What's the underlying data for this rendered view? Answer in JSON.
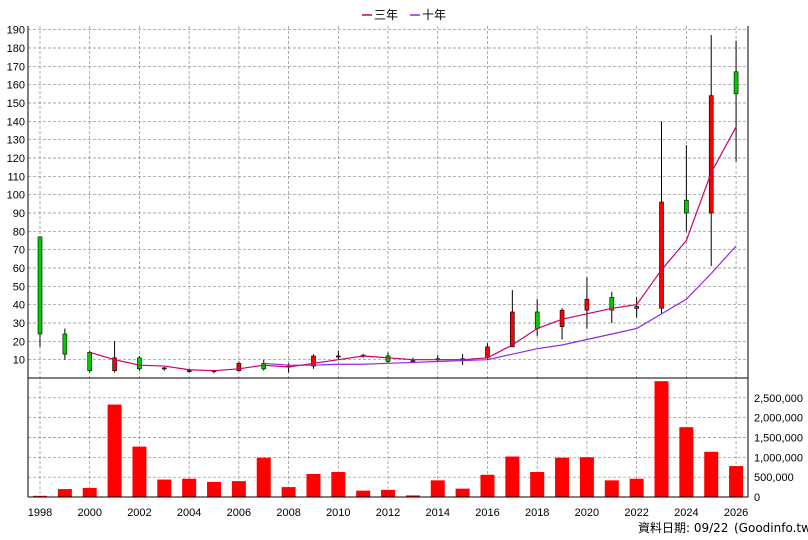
{
  "chart_data": {
    "type": "candlestick",
    "legend": [
      {
        "label": "三年",
        "color": "#cc0066"
      },
      {
        "label": "十年",
        "color": "#8a2be2"
      }
    ],
    "legend_position": "top-center",
    "grid": true,
    "price_axis": {
      "ticks": [
        10,
        20,
        30,
        40,
        50,
        60,
        70,
        80,
        90,
        100,
        110,
        120,
        130,
        140,
        150,
        160,
        170,
        180,
        190
      ],
      "ylim": [
        0,
        192
      ]
    },
    "volume_axis": {
      "ticks": [
        "0",
        "500,000",
        "1,000,000",
        "1,500,000",
        "2,000,000",
        "2,500,000"
      ],
      "ylim": [
        0,
        3000000
      ]
    },
    "x_tick_labels": [
      "1998",
      "2000",
      "2002",
      "2004",
      "2006",
      "2008",
      "2010",
      "2012",
      "2014",
      "2016",
      "2018",
      "2020",
      "2022",
      "2024",
      "2026"
    ],
    "candles": [
      {
        "year": 1998,
        "open": 24,
        "close": 77,
        "high": 77,
        "low": 17
      },
      {
        "year": 1999,
        "open": 13,
        "close": 24,
        "high": 27,
        "low": 10
      },
      {
        "year": 2000,
        "open": 4,
        "close": 14,
        "high": 15,
        "low": 3
      },
      {
        "year": 2001,
        "open": 11,
        "close": 4,
        "high": 20,
        "low": 3
      },
      {
        "year": 2002,
        "open": 5,
        "close": 11,
        "high": 12,
        "low": 4
      },
      {
        "year": 2003,
        "open": 5.5,
        "close": 5,
        "high": 6,
        "low": 4
      },
      {
        "year": 2004,
        "open": 4,
        "close": 3.6,
        "high": 5,
        "low": 3
      },
      {
        "year": 2005,
        "open": 4,
        "close": 3.5,
        "high": 4.5,
        "low": 2.5
      },
      {
        "year": 2006,
        "open": 8,
        "close": 4,
        "high": 9,
        "low": 3.5
      },
      {
        "year": 2007,
        "open": 5,
        "close": 8,
        "high": 10,
        "low": 4
      },
      {
        "year": 2008,
        "open": 6.5,
        "close": 6,
        "high": 8,
        "low": 3
      },
      {
        "year": 2009,
        "open": 12,
        "close": 6.5,
        "high": 13,
        "low": 5
      },
      {
        "year": 2010,
        "open": 12,
        "close": 11.5,
        "high": 15,
        "low": 10
      },
      {
        "year": 2011,
        "open": 12.5,
        "close": 12,
        "high": 13,
        "low": 11
      },
      {
        "year": 2012,
        "open": 9,
        "close": 12,
        "high": 14,
        "low": 8
      },
      {
        "year": 2013,
        "open": 9.5,
        "close": 9,
        "high": 11,
        "low": 8.5
      },
      {
        "year": 2014,
        "open": 10.5,
        "close": 10,
        "high": 12.5,
        "low": 9
      },
      {
        "year": 2015,
        "open": 10.5,
        "close": 10,
        "high": 13,
        "low": 7
      },
      {
        "year": 2016,
        "open": 17,
        "close": 11,
        "high": 19,
        "low": 10
      },
      {
        "year": 2017,
        "open": 36,
        "close": 17,
        "high": 48,
        "low": 17
      },
      {
        "year": 2018,
        "open": 27,
        "close": 36,
        "high": 43,
        "low": 23
      },
      {
        "year": 2019,
        "open": 37,
        "close": 28,
        "high": 38,
        "low": 21
      },
      {
        "year": 2020,
        "open": 43,
        "close": 37,
        "high": 55,
        "low": 27
      },
      {
        "year": 2021,
        "open": 37,
        "close": 44,
        "high": 47,
        "low": 30
      },
      {
        "year": 2022,
        "open": 39,
        "close": 38,
        "high": 44,
        "low": 33
      },
      {
        "year": 2023,
        "open": 96,
        "close": 38,
        "high": 140,
        "low": 35
      },
      {
        "year": 2024,
        "open": 90,
        "close": 97,
        "high": 127,
        "low": 80
      },
      {
        "year": 2025,
        "open": 154,
        "close": 90,
        "high": 187,
        "low": 61
      },
      {
        "year": 2026,
        "open": 155,
        "close": 167,
        "high": 184,
        "low": 118
      }
    ],
    "series": [
      {
        "name": "三年",
        "x": [
          2000,
          2001,
          2002,
          2003,
          2004,
          2005,
          2006,
          2007,
          2008,
          2009,
          2010,
          2011,
          2012,
          2013,
          2014,
          2015,
          2016,
          2017,
          2018,
          2019,
          2020,
          2021,
          2022,
          2023,
          2024,
          2025,
          2026
        ],
        "values": [
          14,
          10,
          7,
          6.5,
          4.5,
          4,
          5,
          7,
          6,
          8,
          10,
          12,
          11,
          10,
          10,
          10,
          11,
          18,
          27,
          32,
          35,
          38,
          40,
          59,
          75,
          112,
          137
        ]
      },
      {
        "name": "十年",
        "x": [
          2007,
          2008,
          2009,
          2010,
          2011,
          2012,
          2013,
          2014,
          2015,
          2016,
          2017,
          2018,
          2019,
          2020,
          2021,
          2022,
          2023,
          2024,
          2025,
          2026
        ],
        "values": [
          8,
          7,
          7,
          7.5,
          7.5,
          8,
          8.5,
          9,
          9.5,
          10,
          13,
          16,
          18,
          21,
          24,
          27,
          35,
          43,
          57,
          72
        ]
      }
    ],
    "volume": [
      {
        "year": 1998,
        "value": 30000
      },
      {
        "year": 1999,
        "value": 200000
      },
      {
        "year": 2000,
        "value": 230000
      },
      {
        "year": 2001,
        "value": 2330000
      },
      {
        "year": 2002,
        "value": 1270000
      },
      {
        "year": 2003,
        "value": 440000
      },
      {
        "year": 2004,
        "value": 460000
      },
      {
        "year": 2005,
        "value": 380000
      },
      {
        "year": 2006,
        "value": 400000
      },
      {
        "year": 2007,
        "value": 990000
      },
      {
        "year": 2008,
        "value": 250000
      },
      {
        "year": 2009,
        "value": 580000
      },
      {
        "year": 2010,
        "value": 630000
      },
      {
        "year": 2011,
        "value": 160000
      },
      {
        "year": 2012,
        "value": 180000
      },
      {
        "year": 2013,
        "value": 40000
      },
      {
        "year": 2014,
        "value": 420000
      },
      {
        "year": 2015,
        "value": 210000
      },
      {
        "year": 2016,
        "value": 560000
      },
      {
        "year": 2017,
        "value": 1020000
      },
      {
        "year": 2018,
        "value": 630000
      },
      {
        "year": 2019,
        "value": 990000
      },
      {
        "year": 2020,
        "value": 1000000
      },
      {
        "year": 2021,
        "value": 420000
      },
      {
        "year": 2022,
        "value": 460000
      },
      {
        "year": 2023,
        "value": 2920000
      },
      {
        "year": 2024,
        "value": 1760000
      },
      {
        "year": 2025,
        "value": 1140000
      },
      {
        "year": 2026,
        "value": 780000
      }
    ],
    "colors": {
      "up": "#00cc00",
      "down": "#ff0000",
      "volume": "#ff0000",
      "three_year": "#cc0066",
      "ten_year": "#8a2be2",
      "grid": "#888888"
    }
  },
  "footer": {
    "date_label": "資料日期: 09/22",
    "source": "(Goodinfo.tw)"
  }
}
